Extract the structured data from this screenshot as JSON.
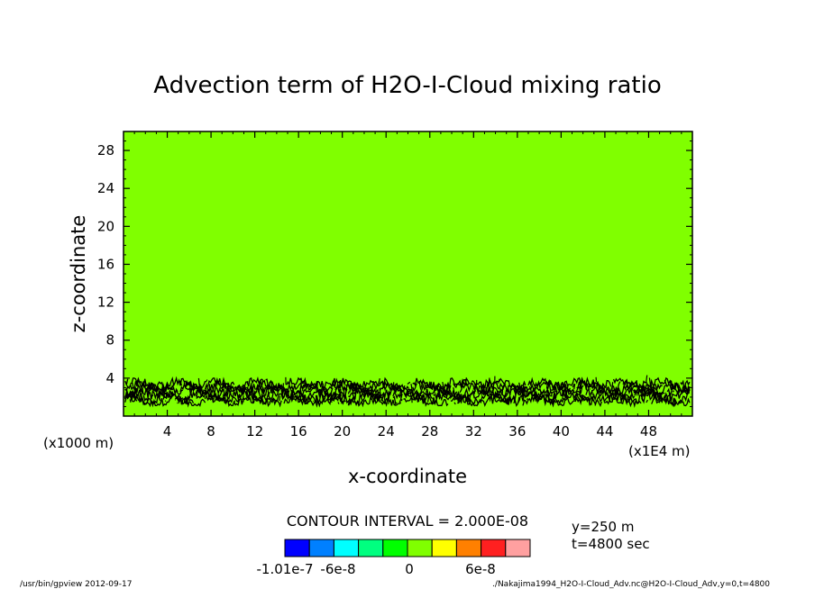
{
  "chart_data": {
    "type": "heatmap",
    "title": "Advection term of H2O-I-Cloud mixing ratio",
    "xlabel": "x-coordinate",
    "ylabel": "z-coordinate",
    "x_unit_label": "(x1E4 m)",
    "y_unit_label": "(x1000 m)",
    "xlim": [
      0,
      52
    ],
    "ylim": [
      0,
      30
    ],
    "x_ticks": [
      4,
      8,
      12,
      16,
      20,
      24,
      28,
      32,
      36,
      40,
      44,
      48
    ],
    "y_ticks": [
      4,
      8,
      12,
      16,
      20,
      24,
      28
    ],
    "background_level_color": "#80ff00",
    "contour_band": {
      "z_min": 1.4,
      "z_max": 3.6,
      "color": "#000000"
    },
    "contour_interval_label": "CONTOUR INTERVAL = 2.000E-08",
    "colorbar": {
      "colors": [
        "#0000ff",
        "#0080ff",
        "#00ffff",
        "#00ff80",
        "#00ff00",
        "#80ff00",
        "#ffff00",
        "#ff8000",
        "#ff2020",
        "#ffa0a0"
      ],
      "labels": [
        "-1.01e-7",
        "-6e-8",
        "0",
        "6e-8"
      ]
    },
    "meta": {
      "y": "y=250 m",
      "t": "t=4800 sec"
    },
    "footer_left": "/usr/bin/gpview   2012-09-17",
    "footer_right": "./Nakajima1994_H2O-I-Cloud_Adv.nc@H2O-I-Cloud_Adv,y=0,t=4800"
  }
}
